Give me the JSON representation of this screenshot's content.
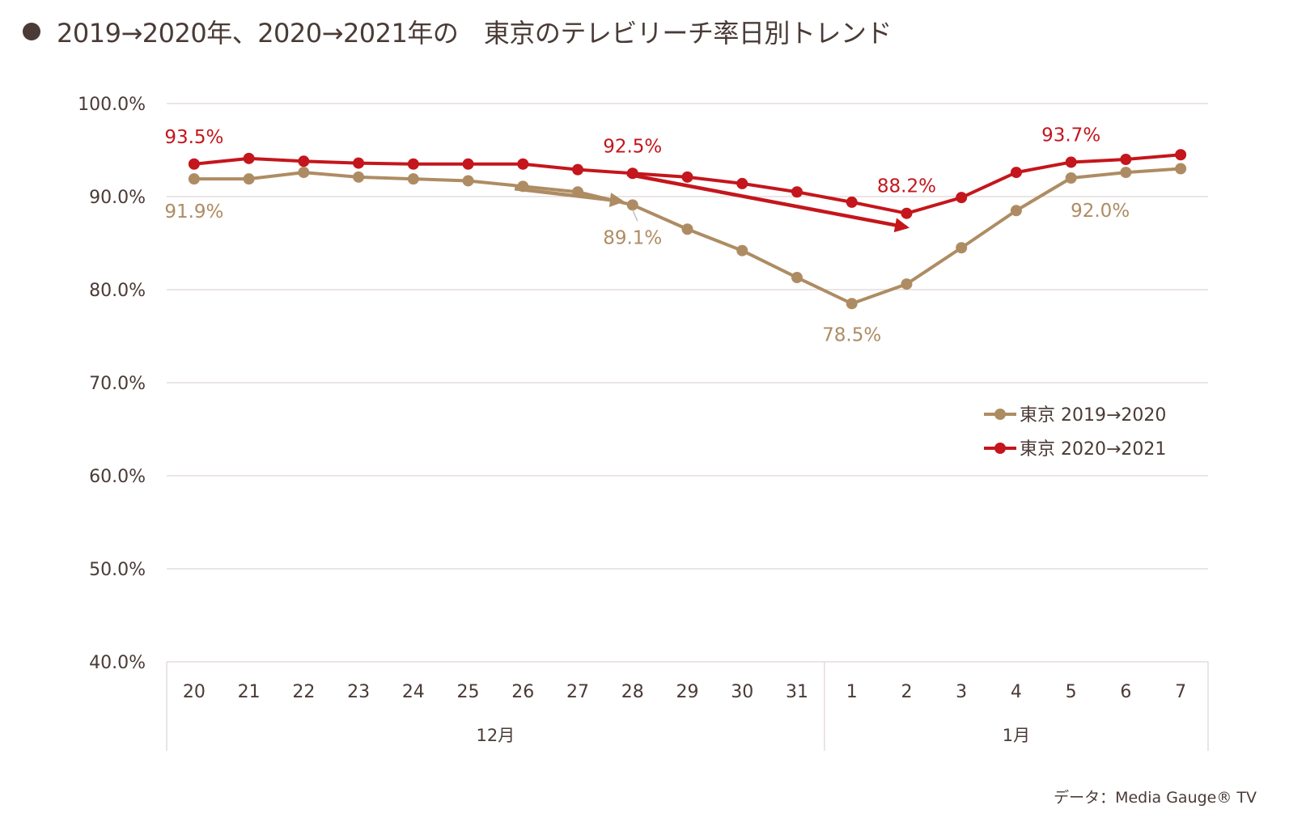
{
  "title": "2019→2020年、2020→2021年の　東京のテレビリーチ率日別トレンド",
  "source": "データ：Media Gauge® TV",
  "colors": {
    "series_2019": "#ae8c63",
    "series_2020": "#c4161c",
    "grid": "#e0d5d5",
    "text": "#4a3b36"
  },
  "chart_data": {
    "type": "line",
    "title": "2019→2020年、2020→2021年の　東京のテレビリーチ率日別トレンド",
    "xlabel": "",
    "ylabel": "",
    "categories": [
      "20",
      "21",
      "22",
      "23",
      "24",
      "25",
      "26",
      "27",
      "28",
      "29",
      "30",
      "31",
      "1",
      "2",
      "3",
      "4",
      "5",
      "6",
      "7"
    ],
    "category_groups": [
      {
        "label": "12月",
        "count": 12
      },
      {
        "label": "1月",
        "count": 7
      }
    ],
    "ylim": [
      40,
      100
    ],
    "yticks": [
      40,
      50,
      60,
      70,
      80,
      90,
      100
    ],
    "ytick_labels": [
      "40.0%",
      "50.0%",
      "60.0%",
      "70.0%",
      "80.0%",
      "90.0%",
      "100.0%"
    ],
    "grid": true,
    "legend": "right",
    "series": [
      {
        "name": "東京 2019→2020",
        "values": [
          91.9,
          91.9,
          92.6,
          92.1,
          91.9,
          91.7,
          91.1,
          90.5,
          89.1,
          86.5,
          84.2,
          81.3,
          78.5,
          80.6,
          84.5,
          88.5,
          92.0,
          92.6,
          93.0
        ],
        "labels": [
          {
            "index": 0,
            "text": "91.9%"
          },
          {
            "index": 8,
            "text": "89.1%"
          },
          {
            "index": 12,
            "text": "78.5%"
          },
          {
            "index": 16,
            "text": "92.0%"
          }
        ]
      },
      {
        "name": "東京 2020→2021",
        "values": [
          93.5,
          94.1,
          93.8,
          93.6,
          93.5,
          93.5,
          93.5,
          92.9,
          92.5,
          92.1,
          91.4,
          90.5,
          89.4,
          88.2,
          89.9,
          92.6,
          93.7,
          94.0,
          94.5
        ],
        "labels": [
          {
            "index": 0,
            "text": "93.5%"
          },
          {
            "index": 8,
            "text": "92.5%"
          },
          {
            "index": 13,
            "text": "88.2%"
          },
          {
            "index": 16,
            "text": "93.7%"
          }
        ]
      }
    ]
  }
}
